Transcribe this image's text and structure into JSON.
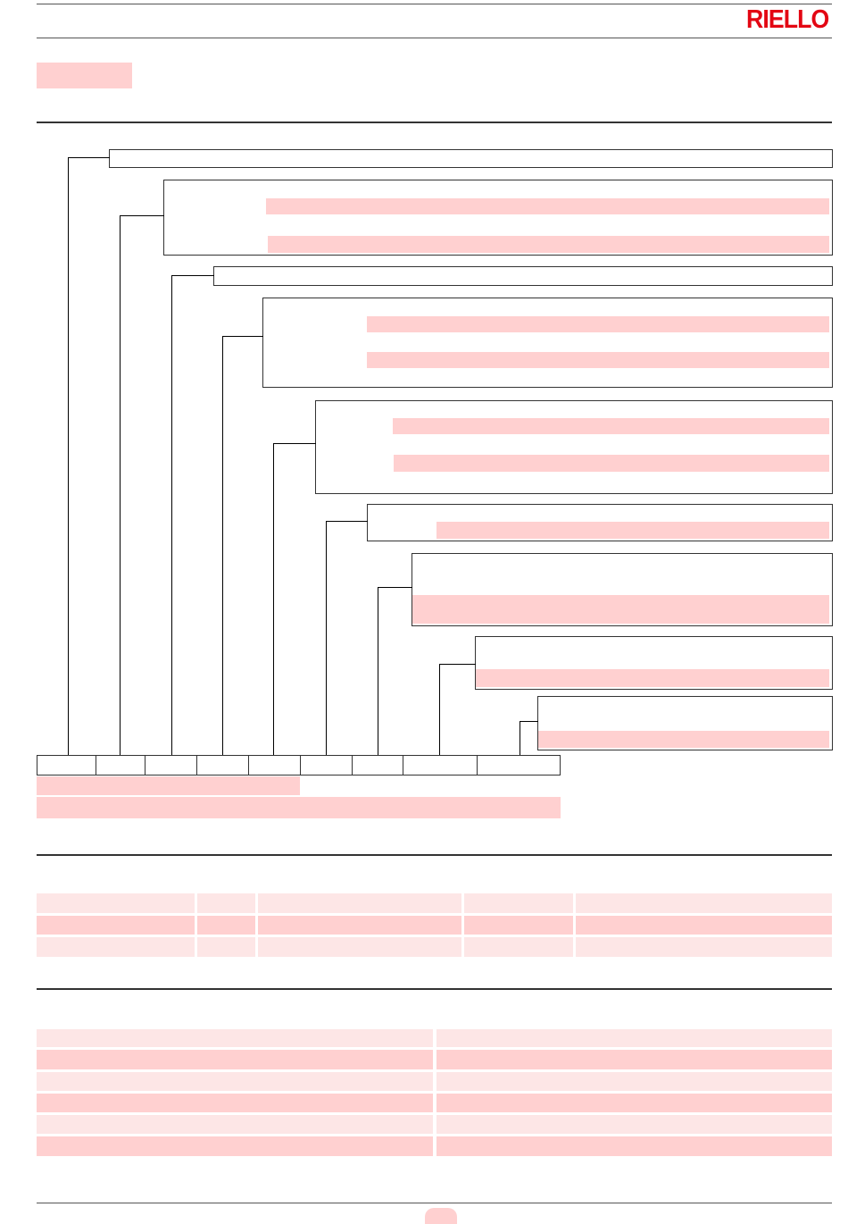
{
  "header": {
    "logo_text": "RIELLO",
    "brand_color": "#e30613",
    "highlight_color": "#ffd0d0",
    "row_light_color": "#fde6e6"
  }
}
